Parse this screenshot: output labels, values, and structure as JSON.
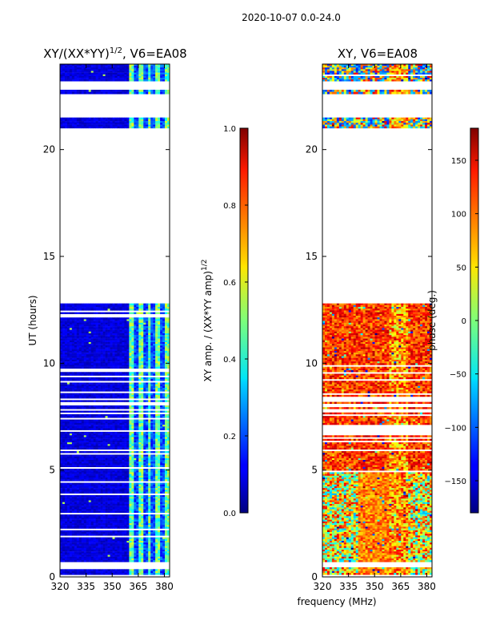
{
  "figure": {
    "suptitle": "2020-10-07 0.0-24.0",
    "xlabel": "frequency (MHz)"
  },
  "chart_data": [
    {
      "type": "heatmap",
      "title": "XY/(XX*YY)",
      "title_exp": "1/2",
      "title_suffix": ", V6=EA08",
      "ylabel": "UT (hours)",
      "xlim": [
        320,
        383
      ],
      "ylim": [
        0,
        24
      ],
      "xticks": [
        "320",
        "335",
        "350",
        "365",
        "380"
      ],
      "xtick_values": [
        320,
        335,
        350,
        365,
        380
      ],
      "yticks": [
        "0",
        "5",
        "10",
        "15",
        "20"
      ],
      "ytick_values": [
        0,
        5,
        10,
        15,
        20
      ],
      "colorbar_label": "XY amp. / (XX*YY amp)",
      "colorbar_label_exp": "1/2",
      "colorbar_range": [
        0.0,
        1.0
      ],
      "colorbar_ticks": [
        "0.0",
        "0.2",
        "0.4",
        "0.6",
        "0.8",
        "1.0"
      ],
      "colorbar_tick_values": [
        0.0,
        0.2,
        0.4,
        0.6,
        0.8,
        1.0
      ],
      "data_bands_hours": [
        [
          0.1,
          0.45
        ],
        [
          0.7,
          12.8
        ],
        [
          21.0,
          21.5
        ],
        [
          22.6,
          22.8
        ],
        [
          23.2,
          24.0
        ]
      ]
    },
    {
      "type": "heatmap",
      "title": "XY, V6=EA08",
      "xlim": [
        320,
        383
      ],
      "ylim": [
        0,
        24
      ],
      "xticks": [
        "320",
        "335",
        "350",
        "365",
        "380"
      ],
      "xtick_values": [
        320,
        335,
        350,
        365,
        380
      ],
      "yticks": [
        "0",
        "5",
        "10",
        "15",
        "20"
      ],
      "ytick_values": [
        0,
        5,
        10,
        15,
        20
      ],
      "colorbar_label": "phase (deg.)",
      "colorbar_range": [
        -180,
        180
      ],
      "colorbar_ticks": [
        "150",
        "100",
        "50",
        "0",
        "−50",
        "−100",
        "−150"
      ],
      "colorbar_tick_values": [
        150,
        100,
        50,
        0,
        -50,
        -100,
        -150
      ],
      "data_bands_hours": [
        [
          0.1,
          0.45
        ],
        [
          0.7,
          12.8
        ],
        [
          21.0,
          21.5
        ],
        [
          22.6,
          22.8
        ],
        [
          23.2,
          24.0
        ]
      ]
    }
  ]
}
